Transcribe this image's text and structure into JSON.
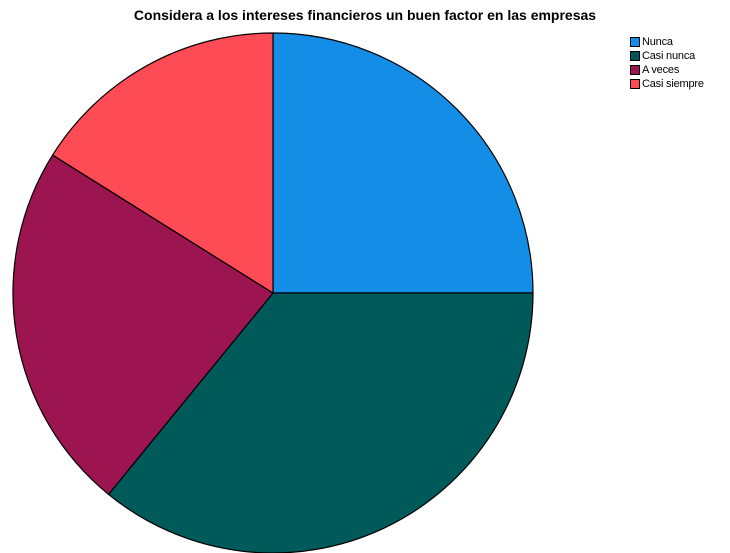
{
  "chart_data": {
    "type": "pie",
    "title": "Considera a los intereses financieros un buen factor en las empresas",
    "categories": [
      "Nunca",
      "Casi nunca",
      "A veces",
      "Casi siempre"
    ],
    "values": [
      25.0,
      35.9,
      23.0,
      16.1
    ],
    "colors": [
      "#148de6",
      "#005a5a",
      "#9c1450",
      "#ff4b55"
    ],
    "start_angle": "12 o'clock",
    "direction": "clockwise",
    "legend": "top-right"
  }
}
